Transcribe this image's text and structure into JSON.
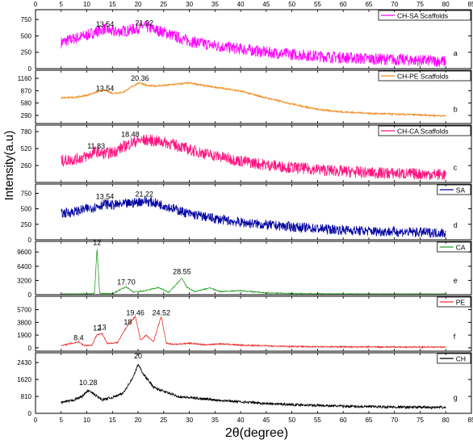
{
  "figure": {
    "ylabel": "Intensity(a.u)",
    "xlabel": "2θ(degree)",
    "x_ticks": [
      0,
      5,
      10,
      15,
      20,
      25,
      30,
      35,
      40,
      45,
      50,
      55,
      60,
      65,
      70,
      75,
      80,
      85
    ]
  },
  "chart_data": [
    {
      "type": "line",
      "legend": "CH-SA Scaffolds",
      "letter": "a",
      "color": "#ff00ff",
      "xlim": [
        0,
        85
      ],
      "ylim": [
        0,
        900
      ],
      "yticks": [
        0,
        250,
        500,
        750
      ],
      "peak_labels": [
        {
          "x": 13.54,
          "label": "13.54",
          "y": 640
        },
        {
          "x": 21.22,
          "label": "21.22",
          "y": 660
        }
      ],
      "x": [
        5,
        8,
        10,
        12,
        13.54,
        15,
        18,
        20,
        21.22,
        23,
        25,
        28,
        30,
        35,
        40,
        45,
        50,
        55,
        60,
        65,
        70,
        75,
        80
      ],
      "y": [
        400,
        470,
        510,
        570,
        610,
        560,
        580,
        620,
        650,
        600,
        560,
        470,
        420,
        350,
        300,
        250,
        220,
        190,
        170,
        150,
        140,
        125,
        110
      ],
      "noise": 90
    },
    {
      "type": "line",
      "legend": "CH-PE Scaffolds",
      "letter": "b",
      "color": "#f08c1e",
      "xlim": [
        0,
        85
      ],
      "ylim": [
        100,
        1350
      ],
      "yticks": [
        290,
        580,
        870,
        1160
      ],
      "peak_labels": [
        {
          "x": 13.54,
          "label": "13.54",
          "y": 870
        },
        {
          "x": 20.36,
          "label": "20.36",
          "y": 1100
        }
      ],
      "x": [
        5,
        8,
        10,
        12,
        13.54,
        15,
        17,
        19,
        20.36,
        22,
        25,
        28,
        30,
        33,
        35,
        38,
        40,
        45,
        50,
        55,
        60,
        65,
        70,
        75,
        80
      ],
      "y": [
        700,
        720,
        760,
        840,
        880,
        810,
        830,
        980,
        1060,
        980,
        990,
        1030,
        1050,
        990,
        950,
        900,
        860,
        700,
        560,
        430,
        370,
        340,
        320,
        300,
        280
      ],
      "noise": 20
    },
    {
      "type": "line",
      "legend": "CH-CA Scaffolds",
      "letter": "c",
      "color": "#ff1480",
      "xlim": [
        0,
        85
      ],
      "ylim": [
        0,
        880
      ],
      "yticks": [
        260,
        520,
        780
      ],
      "peak_labels": [
        {
          "x": 11.83,
          "label": "11.83",
          "y": 520
        },
        {
          "x": 18.48,
          "label": "18.48",
          "y": 700
        }
      ],
      "x": [
        5,
        8,
        10,
        11.83,
        13,
        15,
        18.48,
        20,
        22,
        25,
        28,
        30,
        35,
        40,
        45,
        50,
        55,
        60,
        65,
        70,
        75,
        80
      ],
      "y": [
        330,
        360,
        400,
        480,
        440,
        460,
        600,
        640,
        650,
        620,
        560,
        500,
        410,
        330,
        270,
        230,
        200,
        170,
        150,
        140,
        130,
        120
      ],
      "noise": 90
    },
    {
      "type": "line",
      "legend": "SA",
      "letter": "d",
      "color": "#0000a0",
      "xlim": [
        0,
        85
      ],
      "ylim": [
        0,
        900
      ],
      "yticks": [
        0,
        250,
        500,
        750
      ],
      "peak_labels": [
        {
          "x": 13.54,
          "label": "13.54",
          "y": 660
        },
        {
          "x": 21.22,
          "label": "21.22",
          "y": 700
        }
      ],
      "x": [
        5,
        8,
        10,
        12,
        13.54,
        15,
        18,
        20,
        21.22,
        23,
        25,
        28,
        30,
        35,
        40,
        45,
        50,
        55,
        60,
        65,
        70,
        75,
        80
      ],
      "y": [
        420,
        460,
        500,
        540,
        580,
        560,
        580,
        610,
        630,
        600,
        560,
        470,
        420,
        340,
        280,
        240,
        210,
        180,
        160,
        140,
        130,
        120,
        110
      ],
      "noise": 80
    },
    {
      "type": "line",
      "legend": "CA",
      "letter": "e",
      "color": "#2aa02a",
      "xlim": [
        0,
        85
      ],
      "ylim": [
        0,
        12000
      ],
      "yticks": [
        0,
        3200,
        6400,
        9600
      ],
      "peak_labels": [
        {
          "x": 12,
          "label": "12",
          "y": 11200
        },
        {
          "x": 17.7,
          "label": "17.70",
          "y": 2300
        },
        {
          "x": 28.55,
          "label": "28.55",
          "y": 4600
        }
      ],
      "x": [
        5,
        10,
        11.5,
        12,
        12.5,
        15,
        17.7,
        19,
        21,
        22.5,
        24,
        26,
        28.55,
        29.5,
        31,
        34,
        36,
        40,
        45,
        50,
        60,
        70,
        80
      ],
      "y": [
        100,
        150,
        300,
        10500,
        300,
        200,
        1800,
        600,
        800,
        1200,
        1600,
        500,
        3700,
        1700,
        700,
        1500,
        700,
        900,
        400,
        250,
        150,
        120,
        100
      ],
      "noise": 120
    },
    {
      "type": "line",
      "legend": "PE",
      "letter": "f",
      "color": "#e83030",
      "xlim": [
        0,
        85
      ],
      "ylim": [
        -500,
        7700
      ],
      "yticks": [
        0,
        1900,
        3800,
        5700
      ],
      "peak_labels": [
        {
          "x": 8.4,
          "label": "8.4",
          "y": 1100
        },
        {
          "x": 12,
          "label": "12",
          "y": 2600
        },
        {
          "x": 13,
          "label": "13",
          "y": 2700
        },
        {
          "x": 18,
          "label": "18",
          "y": 3500
        },
        {
          "x": 19.46,
          "label": "19.46",
          "y": 4850
        },
        {
          "x": 24.52,
          "label": "24.52",
          "y": 4850
        }
      ],
      "x": [
        5,
        8.4,
        9.5,
        11,
        12,
        13,
        14,
        16,
        18,
        19.46,
        20.5,
        21.5,
        23,
        24.52,
        25.5,
        27,
        30,
        33,
        36,
        40,
        45,
        50,
        60,
        70,
        80
      ],
      "y": [
        300,
        900,
        350,
        400,
        2000,
        2100,
        600,
        800,
        3400,
        4700,
        1100,
        1900,
        900,
        4700,
        700,
        500,
        700,
        450,
        600,
        400,
        300,
        200,
        150,
        120,
        100
      ],
      "noise": 100
    },
    {
      "type": "line",
      "legend": "CH",
      "letter": "g",
      "color": "#000000",
      "xlim": [
        0,
        85
      ],
      "ylim": [
        0,
        2900
      ],
      "yticks": [
        0,
        810,
        1620,
        2430
      ],
      "peak_labels": [
        {
          "x": 10.28,
          "label": "10.28",
          "y": 1350
        },
        {
          "x": 20,
          "label": "20",
          "y": 2620
        }
      ],
      "x": [
        5,
        7,
        9,
        10.28,
        11.5,
        13,
        15,
        17,
        19,
        20,
        21,
        23,
        25,
        28,
        30,
        35,
        40,
        45,
        50,
        55,
        60,
        65,
        70,
        75,
        80
      ],
      "y": [
        520,
        600,
        800,
        1100,
        900,
        650,
        760,
        950,
        1700,
        2350,
        1900,
        1250,
        1050,
        800,
        750,
        650,
        550,
        470,
        420,
        380,
        340,
        320,
        300,
        290,
        280
      ],
      "noise": 60
    }
  ]
}
